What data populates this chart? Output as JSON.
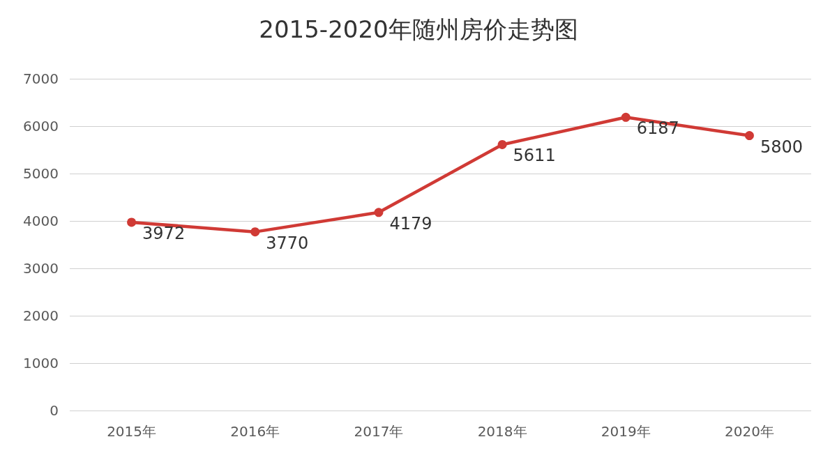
{
  "chart_data": {
    "type": "line",
    "title": "2015-2020年随州房价走势图",
    "categories": [
      "2015年",
      "2016年",
      "2017年",
      "2018年",
      "2019年",
      "2020年"
    ],
    "values": [
      3972,
      3770,
      4179,
      5611,
      6187,
      5800
    ],
    "color": "#d03a35",
    "ylim": [
      0,
      7000
    ],
    "yticks": [
      0,
      1000,
      2000,
      3000,
      4000,
      5000,
      6000,
      7000
    ],
    "grid": "y",
    "marker": "circle",
    "line_style": "solid",
    "data_labels": true
  }
}
